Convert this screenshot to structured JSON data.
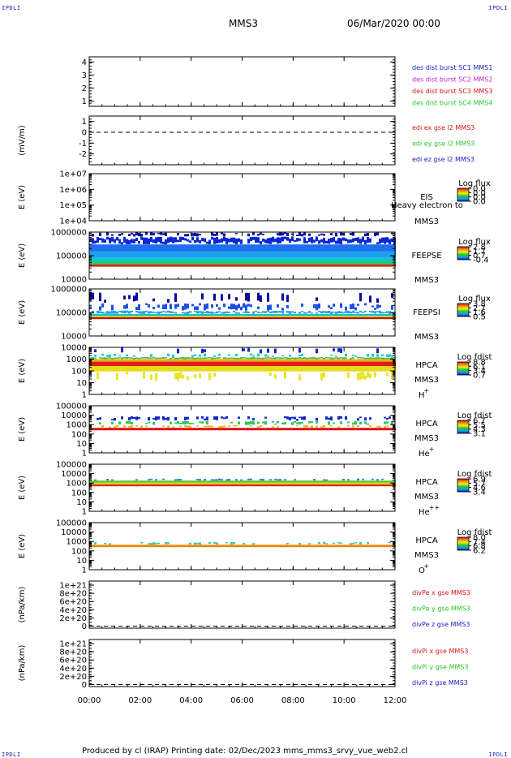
{
  "corner_label": "IPDLI",
  "header": {
    "spacecraft": "MMS3",
    "date": "06/Mar/2020 00:00"
  },
  "footer": {
    "text": "Produced by cl (IRAP)   Printing date: 02/Dec/2023   mms_mms3_srvy_vue_web2.cl"
  },
  "colors": {
    "blue": "#1c1cc8",
    "magenta": "#d21ed2",
    "red": "#dc1414",
    "green": "#28c828"
  },
  "chart_data": [
    {
      "type": "line",
      "panel": "burst",
      "ylim": [
        0.6,
        4.4
      ],
      "yticks": [
        "4",
        "3",
        "2",
        "1"
      ],
      "ytick_values": [
        4,
        3,
        2,
        1
      ],
      "ylabel": "",
      "legend": [
        "des dist burst SC1 MMS1",
        "des dist burst SC2 MMS2",
        "des dist burst SC3 MMS3",
        "des dist burst SC4 MMS4"
      ],
      "legend_colors": [
        "#1c1cc8",
        "#d21ed2",
        "#dc1414",
        "#28c828"
      ],
      "series": []
    },
    {
      "type": "line",
      "panel": "edi",
      "ylim": [
        -3,
        1.5
      ],
      "yticks": [
        "1",
        "0",
        "-1",
        "-2"
      ],
      "ytick_values": [
        1,
        0,
        -1,
        -2
      ],
      "ylabel": "(mV/m)",
      "zero_line": true,
      "legend": [
        "edi ex gse l2 MMS3",
        "edi ey gse l2 MMS3",
        "edi ez gse l2 MMS3"
      ],
      "legend_colors": [
        "#dc1414",
        "#28c828",
        "#1c1cc8"
      ]
    },
    {
      "type": "heatmap",
      "panel": "eis",
      "log_y": true,
      "ylim": [
        10000,
        10000000
      ],
      "yticks": [
        "1e+07",
        "1e+06",
        "1e+05",
        "1e+04"
      ],
      "ytick_values": [
        10000000,
        1000000,
        100000,
        10000
      ],
      "ylabel": "E (eV)",
      "instrument": "EIS",
      "overlay_text": "Heavy electron to",
      "spacecraft": "MMS3",
      "colorbar_title": "Log flux",
      "colorbar_ticks": [
        "0.0",
        "0.0",
        "0.0",
        "0.0"
      ]
    },
    {
      "type": "heatmap",
      "panel": "feepse",
      "log_y": true,
      "ylim": [
        10000,
        1000000
      ],
      "yticks": [
        "1000000",
        "100000",
        "10000"
      ],
      "ytick_values": [
        1000000,
        100000,
        10000
      ],
      "ylabel": "E (eV)",
      "instrument": "FEEPSE",
      "spacecraft": "MMS3",
      "colorbar_title": "Log flux",
      "colorbar_ticks": [
        "2.8",
        "1.7",
        "0.7",
        "-0.4"
      ],
      "bands": [
        {
          "emin": 650000,
          "emax": 1000000,
          "color": "#0a0aa0",
          "coverage": 0.5
        },
        {
          "emin": 300000,
          "emax": 650000,
          "color": "#0a28d2",
          "coverage": 0.95
        },
        {
          "emin": 150000,
          "emax": 300000,
          "color": "#1e6ef0",
          "coverage": 1.0
        },
        {
          "emin": 80000,
          "emax": 150000,
          "color": "#1ea0f0",
          "coverage": 1.0
        },
        {
          "emin": 55000,
          "emax": 80000,
          "color": "#14c8c8",
          "coverage": 1.0
        },
        {
          "emin": 42000,
          "emax": 55000,
          "color": "#28c864",
          "coverage": 1.0
        },
        {
          "emin": 34000,
          "emax": 42000,
          "color": "#dc1e14",
          "coverage": 1.0
        }
      ]
    },
    {
      "type": "heatmap",
      "panel": "feepsi",
      "log_y": true,
      "ylim": [
        10000,
        1000000
      ],
      "yticks": [
        "1000000",
        "100000",
        "10000"
      ],
      "ytick_values": [
        1000000,
        100000,
        10000
      ],
      "ylabel": "E (eV)",
      "instrument": "FEEPSI",
      "spacecraft": "MMS3",
      "colorbar_title": "Log flux",
      "colorbar_ticks": [
        "3.8",
        "2.7",
        "1.6",
        "0.5"
      ],
      "bands": [
        {
          "emin": 250000,
          "emax": 700000,
          "color": "#0a0aa0",
          "coverage": 0.22
        },
        {
          "emin": 120000,
          "emax": 250000,
          "color": "#1e50e6",
          "coverage": 0.55
        },
        {
          "emin": 85000,
          "emax": 120000,
          "color": "#28a0f0",
          "coverage": 0.9
        },
        {
          "emin": 70000,
          "emax": 85000,
          "color": "#14c8b4",
          "coverage": 1.0
        },
        {
          "emin": 62000,
          "emax": 70000,
          "color": "#e6d214",
          "coverage": 1.0
        },
        {
          "emin": 52000,
          "emax": 62000,
          "color": "#b41414",
          "coverage": 1.0
        }
      ]
    },
    {
      "type": "heatmap",
      "panel": "hpca_h",
      "log_y": true,
      "ylim": [
        1,
        10000
      ],
      "yticks": [
        "10000",
        "1000",
        "100",
        "10",
        "1"
      ],
      "ytick_values": [
        10000,
        1000,
        100,
        10,
        1
      ],
      "ylabel": "E (eV)",
      "instrument": "HPCA",
      "spacecraft": "MMS3",
      "species": "H",
      "charge": "+",
      "colorbar_title": "Log fdist",
      "colorbar_ticks": [
        "8.8",
        "6.1",
        "3.4",
        "0.7"
      ],
      "bands": [
        {
          "emin": 3000,
          "emax": 20000,
          "color": "#1428c8",
          "coverage": 0.12
        },
        {
          "emin": 1500,
          "emax": 3000,
          "color": "#28c8c8",
          "coverage": 0.35
        },
        {
          "emin": 1000,
          "emax": 1500,
          "color": "#3cc83c",
          "coverage": 0.95
        },
        {
          "emin": 600,
          "emax": 1000,
          "color": "#f0a014",
          "coverage": 1.0
        },
        {
          "emin": 250,
          "emax": 600,
          "color": "#dc1e14",
          "coverage": 1.0
        },
        {
          "emin": 90,
          "emax": 250,
          "color": "#e6dc14",
          "coverage": 1.0
        },
        {
          "emin": 15,
          "emax": 90,
          "color": "#e6e628",
          "coverage": 0.25
        }
      ]
    },
    {
      "type": "heatmap",
      "panel": "hpca_he",
      "log_y": true,
      "ylim": [
        1,
        100000
      ],
      "yticks": [
        "100000",
        "10000",
        "1000",
        "100",
        "10",
        "1"
      ],
      "ytick_values": [
        100000,
        10000,
        1000,
        100,
        10,
        1
      ],
      "ylabel": "E (eV)",
      "instrument": "HPCA",
      "spacecraft": "MMS3",
      "species": "He",
      "charge": "+",
      "colorbar_title": "Log fdist",
      "colorbar_ticks": [
        "6.7",
        "5.5",
        "4.3",
        "3.1"
      ],
      "bands": [
        {
          "emin": 2500,
          "emax": 8000,
          "color": "#1428c8",
          "coverage": 0.4
        },
        {
          "emin": 900,
          "emax": 2500,
          "color": "#28c864",
          "coverage": 0.45
        },
        {
          "emin": 450,
          "emax": 900,
          "color": "#f0b414",
          "coverage": 0.35
        },
        {
          "emin": 250,
          "emax": 450,
          "color": "#dc1414",
          "coverage": 1.0
        }
      ]
    },
    {
      "type": "heatmap",
      "panel": "hpca_hepp",
      "log_y": true,
      "ylim": [
        1,
        100000
      ],
      "yticks": [
        "100000",
        "10000",
        "1000",
        "100",
        "10",
        "1"
      ],
      "ytick_values": [
        100000,
        10000,
        1000,
        100,
        10,
        1
      ],
      "ylabel": "E (eV)",
      "instrument": "HPCA",
      "spacecraft": "MMS3",
      "species": "He",
      "charge": "++",
      "colorbar_title": "Log fdist",
      "colorbar_ticks": [
        "6.9",
        "5.7",
        "4.6",
        "3.4"
      ],
      "bands": [
        {
          "emin": 1800,
          "emax": 3000,
          "color": "#1e78dc",
          "coverage": 0.35
        },
        {
          "emin": 1100,
          "emax": 1800,
          "color": "#50c83c",
          "coverage": 1.0
        },
        {
          "emin": 700,
          "emax": 1100,
          "color": "#e6c814",
          "coverage": 1.0
        },
        {
          "emin": 450,
          "emax": 700,
          "color": "#dc2814",
          "coverage": 1.0
        }
      ]
    },
    {
      "type": "heatmap",
      "panel": "hpca_o",
      "log_y": true,
      "ylim": [
        1,
        100000
      ],
      "yticks": [
        "100000",
        "10000",
        "1000",
        "100",
        "10",
        "1"
      ],
      "ytick_values": [
        100000,
        10000,
        1000,
        100,
        10,
        1
      ],
      "ylabel": "E (eV)",
      "instrument": "HPCA",
      "spacecraft": "MMS3",
      "species": "O",
      "charge": "+",
      "colorbar_title": "Log fdist",
      "colorbar_ticks": [
        "8.0",
        "7.4",
        "6.8",
        "6.2"
      ],
      "bands": [
        {
          "emin": 450,
          "emax": 900,
          "color": "#3cc8a0",
          "coverage": 0.3
        },
        {
          "emin": 250,
          "emax": 450,
          "color": "#e68c14",
          "coverage": 1.0
        }
      ]
    },
    {
      "type": "line",
      "panel": "divpe",
      "ylim": [
        -5e+19,
        1.1e+21
      ],
      "yticks": [
        "1e+21",
        "8e+20",
        "6e+20",
        "4e+20",
        "2e+20",
        "0"
      ],
      "ytick_values": [
        1e+21,
        8e+20,
        6e+20,
        4e+20,
        2e+20,
        0
      ],
      "ylabel": "(nPa/km)",
      "zero_line": true,
      "legend": [
        "divPe x gse MMS3",
        "divPe y gse MMS3",
        "divPe z gse MMS3"
      ],
      "legend_colors": [
        "#dc1414",
        "#28c828",
        "#1c1cc8"
      ]
    },
    {
      "type": "line",
      "panel": "divpi",
      "ylim": [
        -5e+19,
        1.1e+21
      ],
      "yticks": [
        "1e+21",
        "8e+20",
        "6e+20",
        "4e+20",
        "2e+20",
        "0"
      ],
      "ytick_values": [
        1e+21,
        8e+20,
        6e+20,
        4e+20,
        2e+20,
        0
      ],
      "ylabel": "(nPa/km)",
      "zero_line": true,
      "legend": [
        "divPi x gse MMS3",
        "divPi y gse MMS3",
        "divPi z gse MMS3"
      ],
      "legend_colors": [
        "#dc1414",
        "#28c828",
        "#1c1cc8"
      ]
    }
  ],
  "xaxis": {
    "tick_labels": [
      "00:00",
      "02:00",
      "04:00",
      "06:00",
      "08:00",
      "10:00",
      "12:00"
    ],
    "tick_values_hours": [
      0,
      2,
      4,
      6,
      8,
      10,
      12
    ],
    "xlim_hours": [
      0,
      12
    ]
  }
}
